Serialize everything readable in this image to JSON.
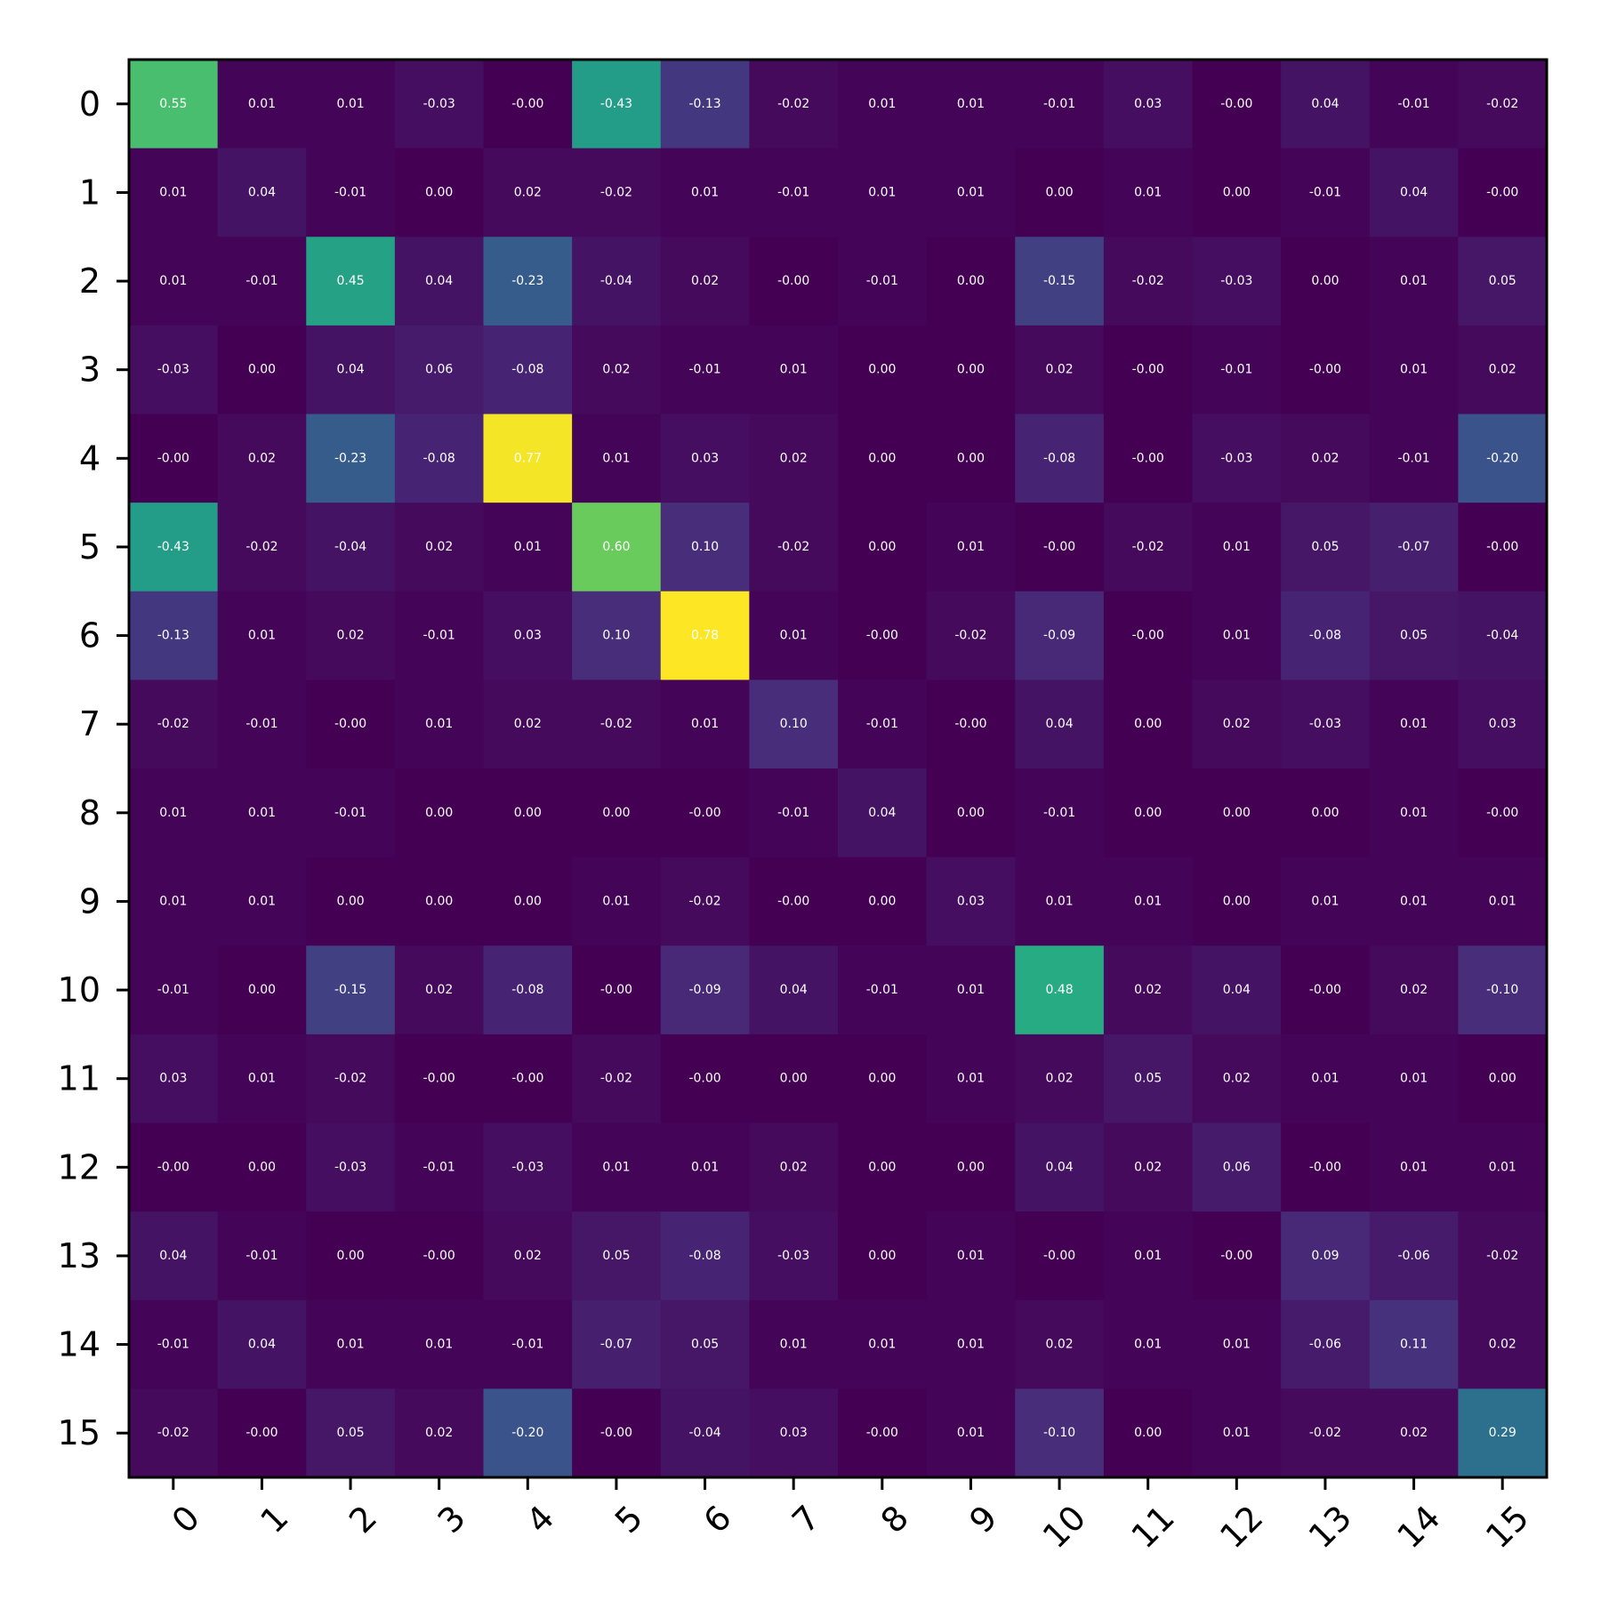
{
  "chart_data": {
    "type": "heatmap",
    "title": "",
    "xlabel": "",
    "ylabel": "",
    "colormap": "viridis",
    "color_range": [
      -0.78,
      0.78
    ],
    "annotation_format": "two decimals",
    "annotation_color": "#ffffff",
    "x_tick_rotation": "45 degrees",
    "grid": false,
    "x_categories": [
      "0",
      "1",
      "2",
      "3",
      "4",
      "5",
      "6",
      "7",
      "8",
      "9",
      "10",
      "11",
      "12",
      "13",
      "14",
      "15"
    ],
    "y_categories": [
      "0",
      "1",
      "2",
      "3",
      "4",
      "5",
      "6",
      "7",
      "8",
      "9",
      "10",
      "11",
      "12",
      "13",
      "14",
      "15"
    ],
    "matrix": [
      [
        0.55,
        0.01,
        0.01,
        -0.03,
        -0.0,
        -0.43,
        -0.13,
        -0.02,
        0.01,
        0.01,
        -0.01,
        0.03,
        -0.0,
        0.04,
        -0.01,
        -0.02
      ],
      [
        0.01,
        0.04,
        -0.01,
        0.0,
        0.02,
        -0.02,
        0.01,
        -0.01,
        0.01,
        0.01,
        0.0,
        0.01,
        0.0,
        -0.01,
        0.04,
        -0.0
      ],
      [
        0.01,
        -0.01,
        0.45,
        0.04,
        -0.23,
        -0.04,
        0.02,
        -0.0,
        -0.01,
        0.0,
        -0.15,
        -0.02,
        -0.03,
        0.0,
        0.01,
        0.05
      ],
      [
        -0.03,
        0.0,
        0.04,
        0.06,
        -0.08,
        0.02,
        -0.01,
        0.01,
        0.0,
        0.0,
        0.02,
        -0.0,
        -0.01,
        -0.0,
        0.01,
        0.02
      ],
      [
        -0.0,
        0.02,
        -0.23,
        -0.08,
        0.77,
        0.01,
        0.03,
        0.02,
        0.0,
        0.0,
        -0.08,
        -0.0,
        -0.03,
        0.02,
        -0.01,
        -0.2
      ],
      [
        -0.43,
        -0.02,
        -0.04,
        0.02,
        0.01,
        0.6,
        0.1,
        -0.02,
        0.0,
        0.01,
        -0.0,
        -0.02,
        0.01,
        0.05,
        -0.07,
        -0.0
      ],
      [
        -0.13,
        0.01,
        0.02,
        -0.01,
        0.03,
        0.1,
        0.78,
        0.01,
        -0.0,
        -0.02,
        -0.09,
        -0.0,
        0.01,
        -0.08,
        0.05,
        -0.04
      ],
      [
        -0.02,
        -0.01,
        -0.0,
        0.01,
        0.02,
        -0.02,
        0.01,
        0.1,
        -0.01,
        -0.0,
        0.04,
        0.0,
        0.02,
        -0.03,
        0.01,
        0.03
      ],
      [
        0.01,
        0.01,
        -0.01,
        0.0,
        0.0,
        0.0,
        -0.0,
        -0.01,
        0.04,
        0.0,
        -0.01,
        0.0,
        0.0,
        0.0,
        0.01,
        -0.0
      ],
      [
        0.01,
        0.01,
        0.0,
        0.0,
        0.0,
        0.01,
        -0.02,
        -0.0,
        0.0,
        0.03,
        0.01,
        0.01,
        0.0,
        0.01,
        0.01,
        0.01
      ],
      [
        -0.01,
        0.0,
        -0.15,
        0.02,
        -0.08,
        -0.0,
        -0.09,
        0.04,
        -0.01,
        0.01,
        0.48,
        0.02,
        0.04,
        -0.0,
        0.02,
        -0.1
      ],
      [
        0.03,
        0.01,
        -0.02,
        -0.0,
        -0.0,
        -0.02,
        -0.0,
        0.0,
        0.0,
        0.01,
        0.02,
        0.05,
        0.02,
        0.01,
        0.01,
        0.0
      ],
      [
        -0.0,
        0.0,
        -0.03,
        -0.01,
        -0.03,
        0.01,
        0.01,
        0.02,
        0.0,
        0.0,
        0.04,
        0.02,
        0.06,
        -0.0,
        0.01,
        0.01
      ],
      [
        0.04,
        -0.01,
        0.0,
        -0.0,
        0.02,
        0.05,
        -0.08,
        -0.03,
        0.0,
        0.01,
        -0.0,
        0.01,
        -0.0,
        0.09,
        -0.06,
        -0.02
      ],
      [
        -0.01,
        0.04,
        0.01,
        0.01,
        -0.01,
        -0.07,
        0.05,
        0.01,
        0.01,
        0.01,
        0.02,
        0.01,
        0.01,
        -0.06,
        0.11,
        0.02
      ],
      [
        -0.02,
        -0.0,
        0.05,
        0.02,
        -0.2,
        -0.0,
        -0.04,
        0.03,
        -0.0,
        0.01,
        -0.1,
        0.0,
        0.01,
        -0.02,
        0.02,
        0.29
      ]
    ]
  }
}
